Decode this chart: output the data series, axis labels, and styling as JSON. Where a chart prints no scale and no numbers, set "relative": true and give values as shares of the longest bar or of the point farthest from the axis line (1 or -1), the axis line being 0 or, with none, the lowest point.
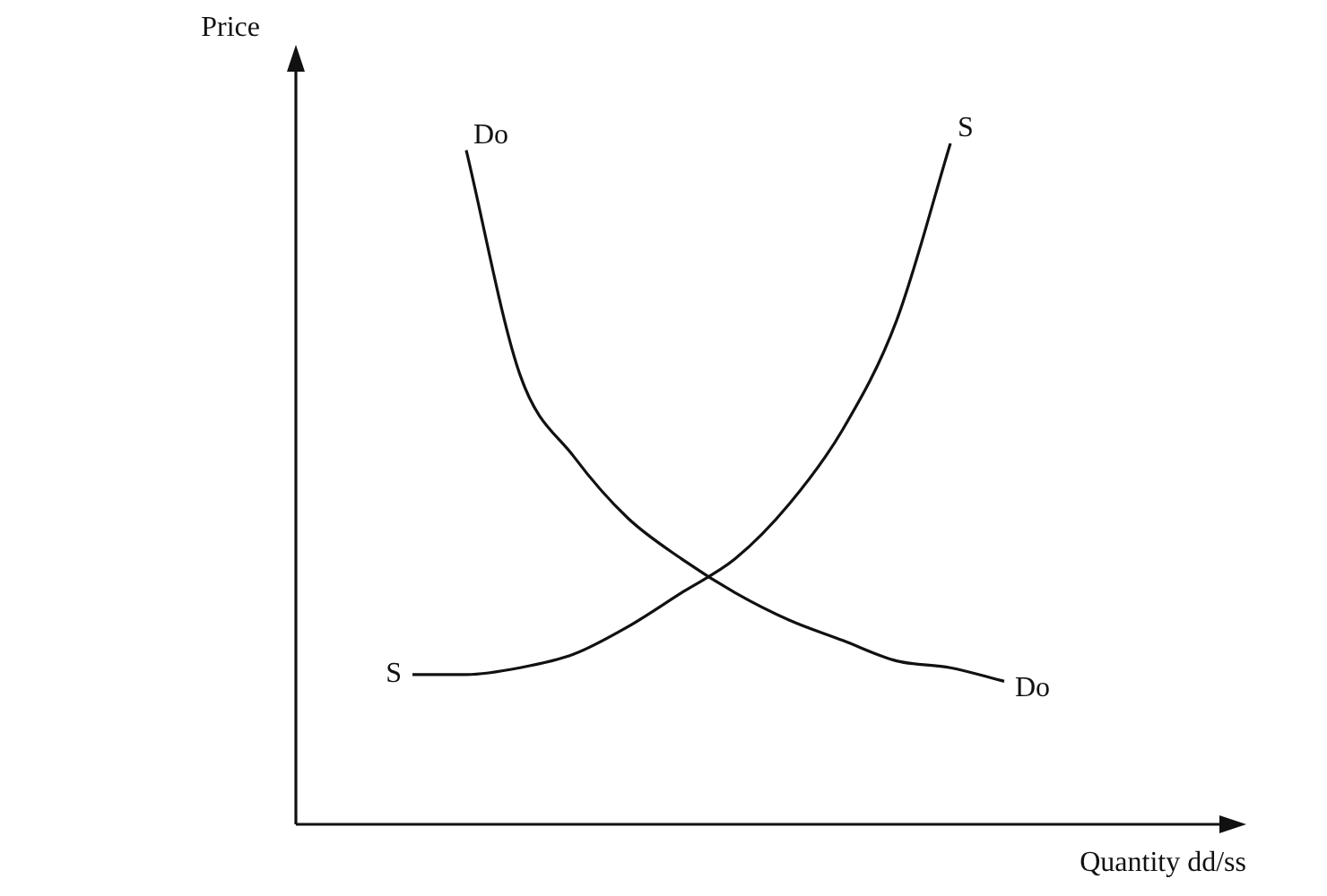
{
  "chart_data": {
    "type": "line",
    "relative": true,
    "ylabel": "Price",
    "xlabel": "Quantity dd/ss",
    "marker": "none",
    "categories": [
      null,
      null,
      null,
      null,
      null,
      null,
      null,
      null,
      null,
      null,
      null,
      null,
      null,
      null,
      null,
      null,
      null,
      null
    ],
    "series": [
      {
        "name": "Do",
        "color": "#111111",
        "values": [
          null,
          null,
          null,
          0.99,
          0.66,
          0.54,
          0.45,
          0.39,
          0.34,
          0.3,
          0.27,
          0.24,
          0.23,
          0.21,
          null,
          null,
          null,
          null
        ]
      },
      {
        "name": "S",
        "color": "#111111",
        "values": [
          null,
          null,
          0.22,
          0.22,
          0.23,
          0.25,
          0.29,
          0.34,
          0.39,
          0.47,
          0.58,
          0.74,
          1,
          null,
          null,
          null,
          null,
          null
        ]
      }
    ]
  }
}
